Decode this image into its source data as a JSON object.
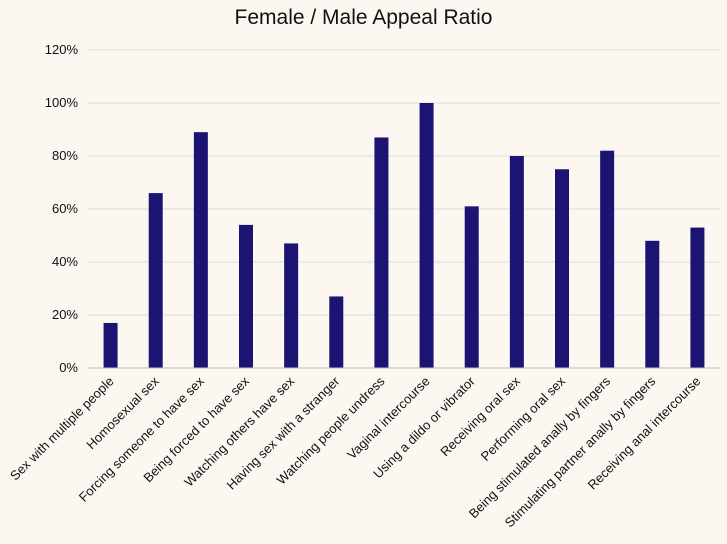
{
  "chart_data": {
    "type": "bar",
    "title": "Female / Male Appeal Ratio",
    "xlabel": "",
    "ylabel": "",
    "categories": [
      "Sex with multiple people",
      "Homosexual sex",
      "Forcing someone to have sex",
      "Being forced to have sex",
      "Watching others have sex",
      "Having sex with a stranger",
      "Watching people undress",
      "Vaginal intercourse",
      "Using a dildo or vibrator",
      "Receiving oral sex",
      "Performing oral sex",
      "Being stimulated anally by fingers",
      "Stimulating partner anally by fingers",
      "Receiving anal intercourse"
    ],
    "values": [
      17,
      66,
      89,
      54,
      47,
      27,
      87,
      100,
      61,
      80,
      75,
      82,
      48,
      53
    ],
    "ylim": [
      0,
      120
    ],
    "yticks": [
      0,
      20,
      40,
      60,
      80,
      100,
      120
    ],
    "ytick_labels": [
      "0%",
      "20%",
      "40%",
      "60%",
      "80%",
      "100%",
      "120%"
    ],
    "bar_color": "#1c1473",
    "grid": true,
    "legend": "none"
  }
}
